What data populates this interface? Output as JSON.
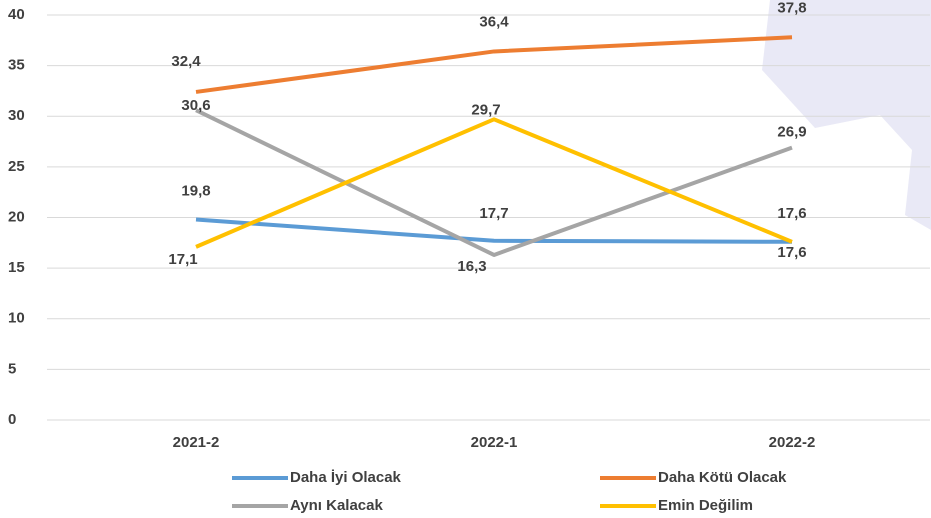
{
  "chart_data": {
    "type": "line",
    "categories": [
      "2021-2",
      "2022-1",
      "2022-2"
    ],
    "series": [
      {
        "name": "Daha İyi Olacak",
        "color": "#5b9bd5",
        "values": [
          19.8,
          17.7,
          17.6
        ],
        "value_labels": [
          "19,8",
          "17,7",
          "17,6"
        ]
      },
      {
        "name": "Daha Kötü Olacak",
        "color": "#ed7d31",
        "values": [
          32.4,
          36.4,
          37.8
        ],
        "value_labels": [
          "32,4",
          "36,4",
          "37,8"
        ]
      },
      {
        "name": "Aynı Kalacak",
        "color": "#a5a5a5",
        "values": [
          30.6,
          16.3,
          26.9
        ],
        "value_labels": [
          "30,6",
          "16,3",
          "26,9"
        ]
      },
      {
        "name": "Emin Değilim",
        "color": "#ffc000",
        "values": [
          17.1,
          29.7,
          17.6
        ],
        "value_labels": [
          "17,1",
          "29,7",
          "17,6"
        ]
      }
    ],
    "ylim": [
      0,
      40
    ],
    "yticks": [
      0,
      5,
      10,
      15,
      20,
      25,
      30,
      35,
      40
    ],
    "grid": true
  }
}
